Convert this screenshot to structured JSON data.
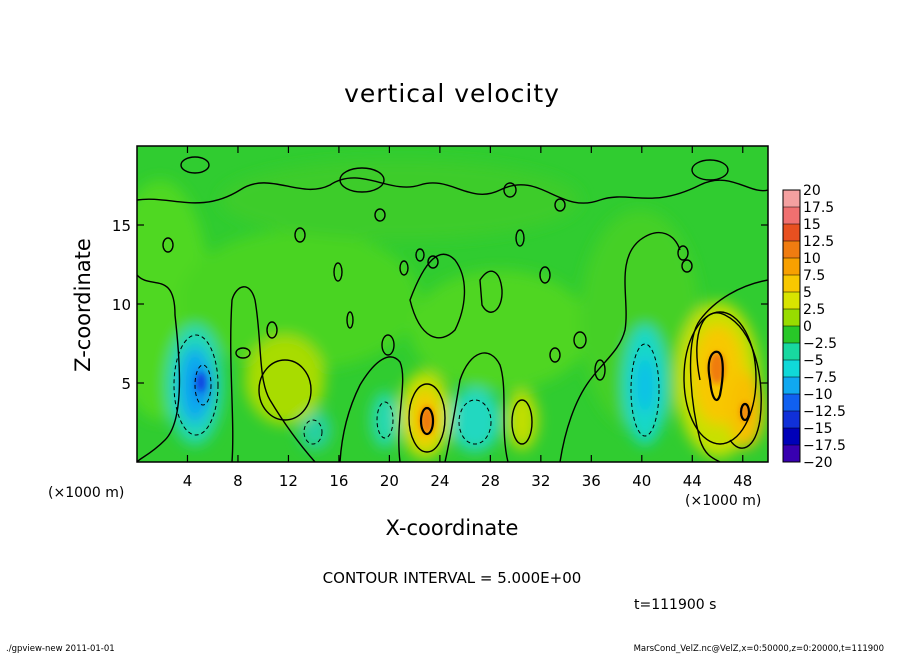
{
  "chart_data": {
    "type": "heatmap",
    "title": "vertical velocity",
    "xlabel": "X-coordinate",
    "ylabel": "Z-coordinate",
    "x_unit_left": "(×1000 m)",
    "x_unit_right": "(×1000 m)",
    "xlim": [
      0,
      50
    ],
    "ylim": [
      0,
      20
    ],
    "x_ticks": [
      4,
      8,
      12,
      16,
      20,
      24,
      28,
      32,
      36,
      40,
      44,
      48
    ],
    "y_ticks": [
      5,
      10,
      15
    ],
    "colorbar": {
      "levels": [
        20,
        17.5,
        15,
        12.5,
        10,
        7.5,
        5,
        2.5,
        0,
        -2.5,
        -5,
        -7.5,
        -10,
        -12.5,
        -15,
        -17.5,
        -20
      ],
      "labels": [
        "20",
        "17.5",
        "15",
        "12.5",
        "10",
        "7.5",
        "5",
        "2.5",
        "0",
        "−2.5",
        "−5",
        "−7.5",
        "−10",
        "−12.5",
        "−15",
        "−17.5",
        "−20"
      ],
      "colors": [
        "#f4a0a0",
        "#f07070",
        "#e85020",
        "#f07c10",
        "#f8a000",
        "#f8c800",
        "#d8e400",
        "#98dc00",
        "#28c828",
        "#18d8a0",
        "#10d8d8",
        "#10a8f0",
        "#1060f0",
        "#1030d8",
        "#0000b8",
        "#3800b0",
        "#7000b0"
      ]
    },
    "contour_interval_text": "CONTOUR INTERVAL = 5.000E+00",
    "features": [
      {
        "x": 5.0,
        "z": 4.6,
        "value": -8
      },
      {
        "x": 23.0,
        "z": 2.7,
        "value": 12
      },
      {
        "x": 30.0,
        "z": 2.5,
        "value": 5
      },
      {
        "x": 25.5,
        "z": 2.5,
        "value": -4
      },
      {
        "x": 41.0,
        "z": 5.0,
        "value": -4
      },
      {
        "x": 45.5,
        "z": 5.0,
        "value": 11
      },
      {
        "x": 48.0,
        "z": 3.0,
        "value": 10
      },
      {
        "x": 11.5,
        "z": 3.5,
        "value": 5
      },
      {
        "x": 19.0,
        "z": 2.5,
        "value": -3
      }
    ]
  },
  "footer": {
    "time": "t=111900 s",
    "program": "./gpview-new   2011-01-01",
    "source": "MarsCond_VelZ.nc@VelZ,x=0:50000,z=0:20000,t=111900"
  }
}
